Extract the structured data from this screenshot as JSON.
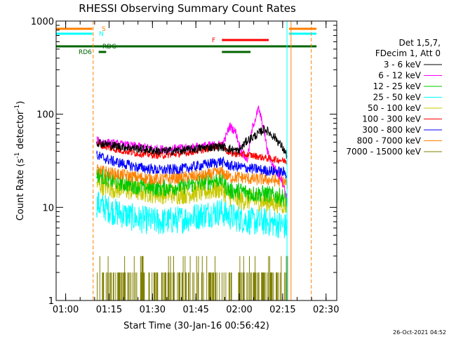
{
  "chart_data": {
    "type": "line",
    "title": "RHESSI Observing Summary Count Rates",
    "xlabel": "Start Time (30-Jan-16 00:56:42)",
    "ylabel_main": "Count Rate (s",
    "ylabel_sup1": "-1",
    "ylabel_mid": " detector",
    "ylabel_sup2": "-1",
    "ylabel_end": ")",
    "y_scale": "log",
    "ylim": [
      1,
      1000
    ],
    "x_unit": "minutes after 00:56:42",
    "xlim": [
      0,
      97
    ],
    "x_ticks": [
      {
        "label": "01:00",
        "value": 3.3
      },
      {
        "label": "01:15",
        "value": 18.3
      },
      {
        "label": "01:30",
        "value": 33.3
      },
      {
        "label": "01:45",
        "value": 48.3
      },
      {
        "label": "02:00",
        "value": 63.3
      },
      {
        "label": "02:15",
        "value": 78.3
      },
      {
        "label": "02:30",
        "value": 93.3
      }
    ],
    "y_ticks": [
      {
        "label": "1",
        "value": 1
      },
      {
        "label": "10",
        "value": 10
      },
      {
        "label": "100",
        "value": 100
      },
      {
        "label": "1000",
        "value": 1000
      }
    ],
    "legend_header": [
      "Det 1,5,7,",
      "FDecim 1, Att 0"
    ],
    "series": [
      {
        "name": "3 - 6 keV",
        "color": "#000000",
        "x": [
          14,
          20,
          28,
          36,
          44,
          52,
          57,
          63,
          66,
          70,
          72,
          76,
          78,
          80
        ],
        "values": [
          50,
          46,
          43,
          40,
          41,
          44,
          45,
          40,
          52,
          62,
          70,
          55,
          45,
          35
        ]
      },
      {
        "name": "6 - 12 keV",
        "color": "#ff00ff",
        "x": [
          14,
          20,
          28,
          36,
          44,
          52,
          57,
          58,
          60,
          62,
          64,
          66,
          68,
          70,
          72,
          73,
          75,
          78,
          80
        ],
        "values": [
          52,
          48,
          45,
          42,
          43,
          46,
          47,
          50,
          75,
          65,
          40,
          32,
          75,
          115,
          65,
          40,
          28,
          20,
          12
        ]
      },
      {
        "name": "12 - 25 keV",
        "color": "#00c800",
        "x": [
          14,
          20,
          28,
          36,
          44,
          52,
          57,
          60,
          64,
          68,
          72,
          78,
          80
        ],
        "values": [
          23,
          19,
          17,
          16,
          17,
          19,
          20,
          15,
          15,
          14,
          14,
          13,
          12
        ]
      },
      {
        "name": "25 - 50 keV",
        "color": "#00ffff",
        "x": [
          14,
          20,
          28,
          36,
          44,
          52,
          57,
          60,
          64,
          68,
          72,
          78,
          80
        ],
        "values": [
          11,
          9,
          7.5,
          7,
          7.5,
          8.5,
          9,
          8,
          7.5,
          7,
          7,
          6.5,
          6
        ]
      },
      {
        "name": "50 - 100 keV",
        "color": "#c8c800",
        "x": [
          14,
          20,
          28,
          36,
          44,
          52,
          57,
          60,
          64,
          68,
          72,
          78,
          80
        ],
        "values": [
          18,
          16,
          15,
          14,
          14,
          15,
          16,
          13,
          12,
          12,
          11.5,
          11,
          10.5
        ]
      },
      {
        "name": "100 - 300 keV",
        "color": "#ff0000",
        "x": [
          14,
          20,
          28,
          36,
          44,
          52,
          57,
          60,
          64,
          68,
          72,
          78,
          80
        ],
        "values": [
          48,
          42,
          38,
          36,
          38,
          42,
          46,
          38,
          37,
          36,
          34,
          32,
          31
        ]
      },
      {
        "name": "300 - 800 keV",
        "color": "#0000ff",
        "x": [
          14,
          20,
          28,
          36,
          44,
          52,
          57,
          60,
          64,
          68,
          72,
          78,
          80
        ],
        "values": [
          36,
          31,
          27,
          25,
          26,
          29,
          31,
          28,
          27,
          26,
          25,
          24,
          23
        ]
      },
      {
        "name": "800 - 7000 keV",
        "color": "#ff8000",
        "x": [
          14,
          20,
          28,
          36,
          44,
          52,
          57,
          60,
          64,
          68,
          72,
          78,
          80
        ],
        "values": [
          25,
          23,
          21,
          20,
          21,
          22,
          24,
          21,
          21,
          20,
          20,
          19,
          18
        ]
      },
      {
        "name": "7000 - 15000 keV",
        "color": "#808000",
        "x": [
          14,
          20,
          28,
          36,
          44,
          52,
          57,
          60,
          64,
          68,
          72,
          78,
          80
        ],
        "values": [
          1.5,
          1.5,
          1.3,
          1.5,
          1.5,
          1.8,
          2,
          1.8,
          1.5,
          1.5,
          1.3,
          1.5,
          1.5
        ]
      }
    ],
    "state_bars": [
      {
        "label": "S",
        "color": "#ff8000",
        "segments": [
          [
            0,
            12.5
          ],
          [
            80.5,
            90
          ]
        ]
      },
      {
        "label": "N",
        "color": "#00ffff",
        "segments": [
          [
            0,
            12.5
          ],
          [
            80.5,
            90
          ]
        ]
      },
      {
        "label": "F",
        "color": "#ff0000",
        "segments": [
          [
            57.3,
            73.5
          ]
        ]
      },
      {
        "label": "RDG",
        "color": "#006400",
        "segments": [
          [
            0,
            90
          ]
        ]
      },
      {
        "label": "RD6",
        "color": "#006400",
        "segments": [
          [
            14.7,
            17.3
          ],
          [
            57.3,
            67.2
          ]
        ]
      }
    ],
    "vertical_markers": [
      {
        "x": 12.8,
        "color": "#ff8000",
        "style": "dashed"
      },
      {
        "x": 88.2,
        "color": "#ff8000",
        "style": "dashed"
      },
      {
        "x": 79.8,
        "color": "#00ffff",
        "style": "solid"
      },
      {
        "x": 81.2,
        "color": "#ff8000",
        "style": "solid"
      }
    ],
    "timestamp": "26-Oct-2021 04:52"
  }
}
